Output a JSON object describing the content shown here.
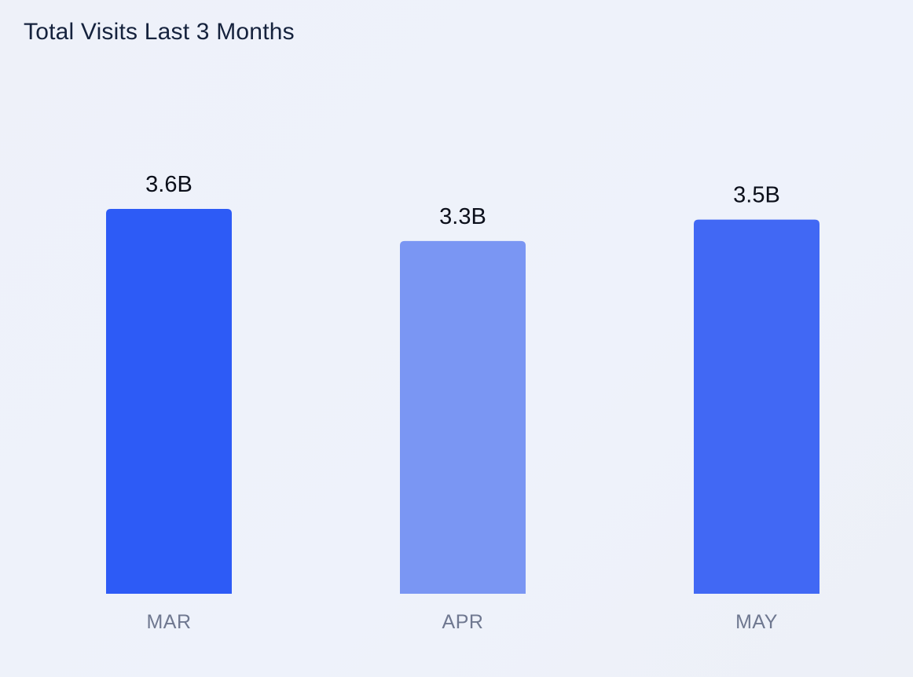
{
  "chart_data": {
    "type": "bar",
    "title": "Total Visits Last 3 Months",
    "categories": [
      "MAR",
      "APR",
      "MAY"
    ],
    "values": [
      3.6,
      3.3,
      3.5
    ],
    "value_labels": [
      "3.6B",
      "3.3B",
      "3.5B"
    ],
    "unit": "B",
    "xlabel": "",
    "ylabel": "",
    "ylim": [
      0,
      3.6
    ],
    "grid": false,
    "colors": [
      "#2d5bf6",
      "#7a96f3",
      "#4168f4"
    ]
  }
}
